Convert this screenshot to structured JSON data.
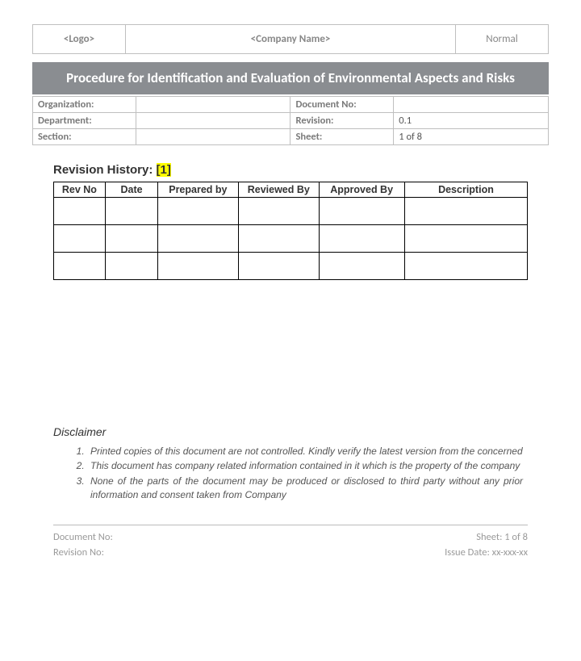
{
  "header": {
    "logo": "<Logo>",
    "company_name": "<Company Name>",
    "normal": "Normal"
  },
  "title": "Procedure for Identification and Evaluation of Environmental Aspects and Risks",
  "meta": {
    "organization_label": "Organization:",
    "organization_value": "",
    "docno_label": "Document No:",
    "docno_value": "",
    "department_label": "Department:",
    "department_value": "",
    "revision_label": "Revision:",
    "revision_value": "0.1",
    "section_label": "Section:",
    "section_value": "",
    "sheet_label": "Sheet:",
    "sheet_value": "1 of 8"
  },
  "revision_history": {
    "heading_prefix": "Revision History: ",
    "heading_highlight": "[1]",
    "columns": [
      "Rev No",
      "Date",
      "Prepared by",
      "Reviewed By",
      "Approved By",
      "Description"
    ],
    "col_widths": [
      "11%",
      "11%",
      "17%",
      "17%",
      "18%",
      "26%"
    ],
    "rows": [
      [
        "",
        "",
        "",
        "",
        "",
        ""
      ],
      [
        "",
        "",
        "",
        "",
        "",
        ""
      ],
      [
        "",
        "",
        "",
        "",
        "",
        ""
      ]
    ]
  },
  "disclaimer": {
    "heading": "Disclaimer",
    "items": [
      "Printed copies of this document are not controlled. Kindly verify the latest version from the concerned",
      "This document has company related information contained in it which is the property of the company",
      "None of the parts of the document may be produced or disclosed to third party without any prior information and consent taken from Company"
    ]
  },
  "footer": {
    "left1": "Document No:",
    "left2": "Revision No:",
    "right1": "Sheet: 1 of 8",
    "right2": "Issue Date: xx-xxx-xx"
  },
  "colors": {
    "title_bg": "#8a8d91",
    "title_fg": "#ffffff",
    "border_gray": "#bfbfbf",
    "text_gray": "#888888",
    "highlight": "#ffff00"
  }
}
